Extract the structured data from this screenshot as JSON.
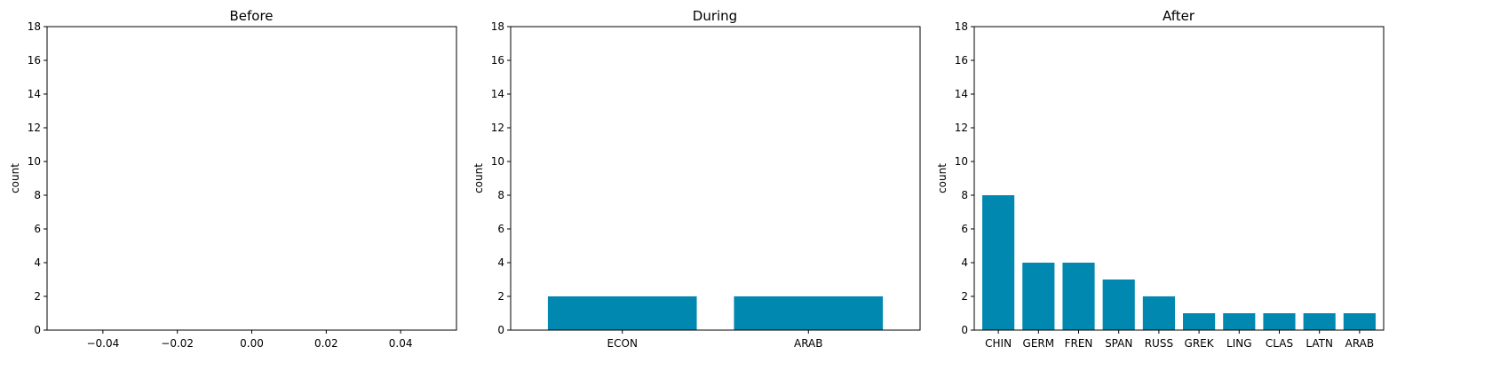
{
  "figure": {
    "background": "#ffffff",
    "bar_color": "#0088b0"
  },
  "chart_data": [
    {
      "type": "bar",
      "title": "Before",
      "xlabel": "",
      "ylabel": "count",
      "categories": [],
      "values": [],
      "xlim": [
        -0.055,
        0.055
      ],
      "xticks": [
        "−0.04",
        "−0.02",
        "0.00",
        "0.02",
        "0.04"
      ],
      "xtick_values": [
        -0.04,
        -0.02,
        0.0,
        0.02,
        0.04
      ],
      "ylim": [
        0,
        18
      ],
      "yticks": [
        0,
        2,
        4,
        6,
        8,
        10,
        12,
        14,
        16,
        18
      ],
      "grid": false
    },
    {
      "type": "bar",
      "title": "During",
      "xlabel": "",
      "ylabel": "count",
      "categories": [
        "ECON",
        "ARAB"
      ],
      "values": [
        2,
        2
      ],
      "ylim": [
        0,
        18
      ],
      "yticks": [
        0,
        2,
        4,
        6,
        8,
        10,
        12,
        14,
        16,
        18
      ],
      "grid": false
    },
    {
      "type": "bar",
      "title": "After",
      "xlabel": "",
      "ylabel": "count",
      "categories": [
        "CHIN",
        "GERM",
        "FREN",
        "SPAN",
        "RUSS",
        "GREK",
        "LING",
        "CLAS",
        "LATN",
        "ARAB"
      ],
      "values": [
        8,
        4,
        4,
        3,
        2,
        1,
        1,
        1,
        1,
        1
      ],
      "ylim": [
        0,
        18
      ],
      "yticks": [
        0,
        2,
        4,
        6,
        8,
        10,
        12,
        14,
        16,
        18
      ],
      "grid": false
    }
  ]
}
